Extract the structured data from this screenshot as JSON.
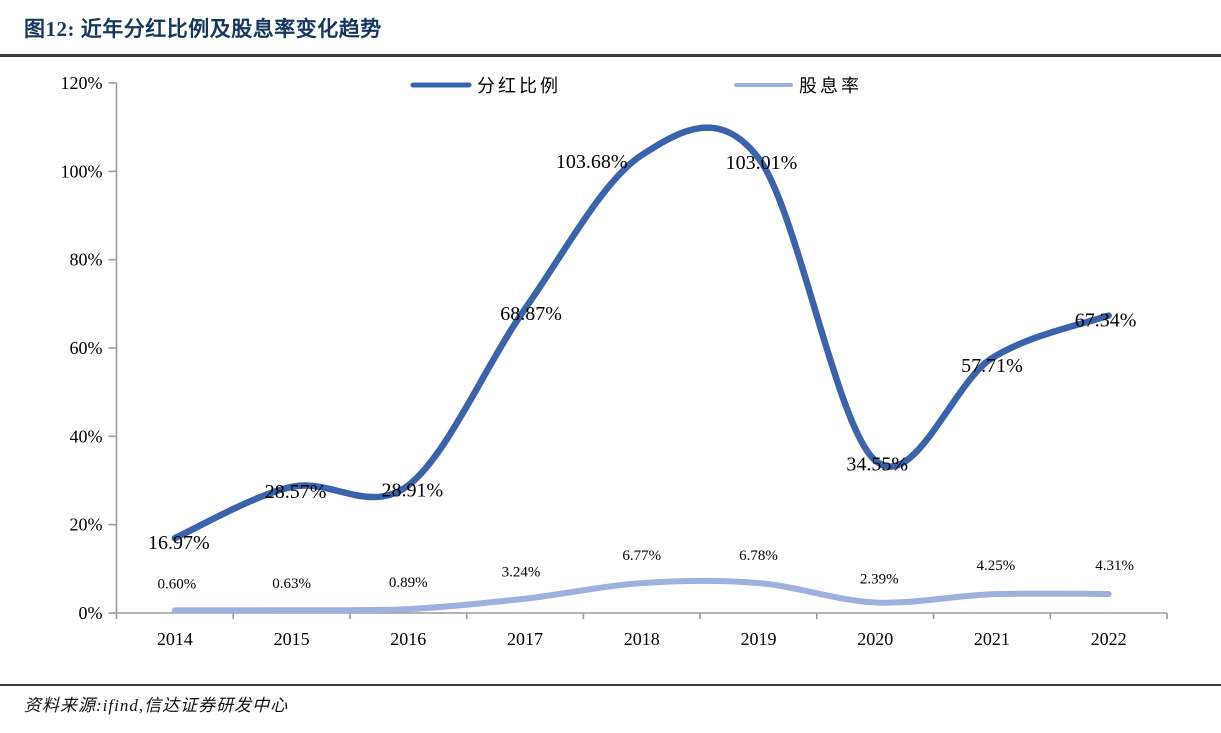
{
  "header": {
    "title": "图12: 近年分红比例及股息率变化趋势"
  },
  "footer": {
    "source": "资料来源:ifind,信达证券研发中心"
  },
  "chart_data": {
    "type": "line",
    "title": "近年分红比例及股息率变化趋势",
    "categories": [
      "2014",
      "2015",
      "2016",
      "2017",
      "2018",
      "2019",
      "2020",
      "2021",
      "2022"
    ],
    "series": [
      {
        "name": "分红比例",
        "values": [
          16.97,
          28.57,
          28.91,
          68.87,
          103.68,
          103.01,
          34.55,
          57.71,
          67.34
        ],
        "labels": [
          "16.97%",
          "28.57%",
          "28.91%",
          "68.87%",
          "103.68%",
          "103.01%",
          "34.55%",
          "57.71%",
          "67.34%"
        ],
        "color": "#3A63AC"
      },
      {
        "name": "股息率",
        "values": [
          0.6,
          0.63,
          0.89,
          3.24,
          6.77,
          6.78,
          2.39,
          4.25,
          4.31
        ],
        "labels": [
          "0.60%",
          "0.63%",
          "0.89%",
          "3.24%",
          "6.77%",
          "6.78%",
          "2.39%",
          "4.25%",
          "4.31%"
        ],
        "color": "#9FAFDE"
      }
    ],
    "xlabel": "",
    "ylabel": "",
    "ylim": [
      0,
      120
    ],
    "yticks": [
      "0%",
      "20%",
      "40%",
      "60%",
      "80%",
      "100%",
      "120%"
    ],
    "grid": false,
    "legend_position": "top",
    "axis_color": "#9a9a9a",
    "text_color": "#000000"
  }
}
